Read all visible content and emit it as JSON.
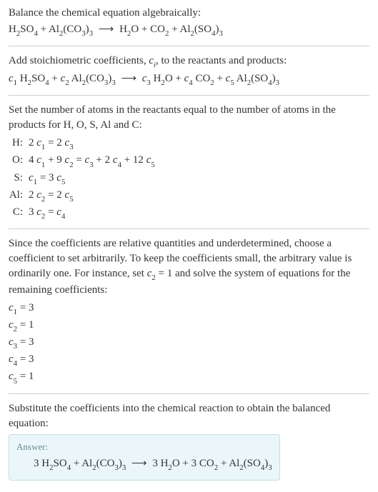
{
  "colors": {
    "text": "#333333",
    "divider": "#d0d0d0",
    "answer_bg": "#eaf6f9",
    "answer_border": "#c5dde4",
    "answer_label": "#6a8a95"
  },
  "typography": {
    "body_fontsize": 15,
    "sub_scale": 0.72,
    "answer_label_fontsize": 13
  },
  "section1": {
    "title": "Balance the chemical equation algebraically:",
    "lhs1": "H",
    "lhs1_sub": "2",
    "lhs2": "SO",
    "lhs2_sub": "4",
    "plus1": " + Al",
    "plus1_sub": "2",
    "plus2": "(CO",
    "plus2_sub1": "3",
    "plus2_rp": ")",
    "plus2_sub2": "3",
    "arrow": "⟶",
    "rhs1": "H",
    "rhs1_sub": "2",
    "rhs2": "O + CO",
    "rhs2_sub": "2",
    "rhs3": " + Al",
    "rhs3_sub": "2",
    "rhs4": "(SO",
    "rhs4_sub1": "4",
    "rhs4_rp": ")",
    "rhs4_sub2": "3"
  },
  "section2": {
    "title_a": "Add stoichiometric coefficients, ",
    "title_ci": "c",
    "title_ci_sub": "i",
    "title_b": ", to the reactants and products:",
    "c1": "c",
    "c1_sub": "1",
    "sp1": " H",
    "sp1_sub": "2",
    "sp1b": "SO",
    "sp1b_sub": "4",
    "plus1": " + ",
    "c2": "c",
    "c2_sub": "2",
    "sp2": " Al",
    "sp2_sub1": "2",
    "sp2b": "(CO",
    "sp2b_sub1": "3",
    "sp2b_rp": ")",
    "sp2b_sub2": "3",
    "arrow": "⟶",
    "c3": "c",
    "c3_sub": "3",
    "sp3": " H",
    "sp3_sub": "2",
    "sp3b": "O",
    "plus2": " + ",
    "c4": "c",
    "c4_sub": "4",
    "sp4": " CO",
    "sp4_sub": "2",
    "plus3": " + ",
    "c5": "c",
    "c5_sub": "5",
    "sp5": " Al",
    "sp5_sub1": "2",
    "sp5b": "(SO",
    "sp5b_sub1": "4",
    "sp5b_rp": ")",
    "sp5b_sub2": "3"
  },
  "section3": {
    "title": "Set the number of atoms in the reactants equal to the number of atoms in the products for H, O, S, Al and C:",
    "rows": [
      {
        "label": "H:",
        "pre1": "2 ",
        "c1": "c",
        "c1s": "1",
        "mid": " = 2 ",
        "c2": "c",
        "c2s": "3"
      },
      {
        "label": "O:",
        "pre1": "4 ",
        "c1": "c",
        "c1s": "1",
        "plus1": " + 9 ",
        "c2": "c",
        "c2s": "2",
        "eq": " = ",
        "c3": "c",
        "c3s": "3",
        "plus2": " + 2 ",
        "c4": "c",
        "c4s": "4",
        "plus3": " + 12 ",
        "c5": "c",
        "c5s": "5"
      },
      {
        "label": "S:",
        "c1": "c",
        "c1s": "1",
        "mid": " = 3 ",
        "c2": "c",
        "c2s": "5"
      },
      {
        "label": "Al:",
        "pre1": "2 ",
        "c1": "c",
        "c1s": "2",
        "mid": " = 2 ",
        "c2": "c",
        "c2s": "5"
      },
      {
        "label": "C:",
        "pre1": "3 ",
        "c1": "c",
        "c1s": "2",
        "mid": " = ",
        "c2": "c",
        "c2s": "4"
      }
    ]
  },
  "section4": {
    "title_a": "Since the coefficients are relative quantities and underdetermined, choose a coefficient to set arbitrarily. To keep the coefficients small, the arbitrary value is ordinarily one. For instance, set ",
    "cvar": "c",
    "cvar_sub": "2",
    "title_b": " = 1 and solve the system of equations for the remaining coefficients:",
    "coefs": [
      {
        "c": "c",
        "cs": "1",
        "val": " = 3"
      },
      {
        "c": "c",
        "cs": "2",
        "val": " = 1"
      },
      {
        "c": "c",
        "cs": "3",
        "val": " = 3"
      },
      {
        "c": "c",
        "cs": "4",
        "val": " = 3"
      },
      {
        "c": "c",
        "cs": "5",
        "val": " = 1"
      }
    ]
  },
  "section5": {
    "title": "Substitute the coefficients into the chemical reaction to obtain the balanced equation:",
    "answer_label": "Answer:",
    "a1": "3 H",
    "a1_sub": "2",
    "a2": "SO",
    "a2_sub": "4",
    "plus1": " + Al",
    "plus1_sub": "2",
    "a3": "(CO",
    "a3_sub1": "3",
    "a3_rp": ")",
    "a3_sub2": "3",
    "arrow": "⟶",
    "a4": "3 H",
    "a4_sub": "2",
    "a5": "O + 3 CO",
    "a5_sub": "2",
    "a6": " + Al",
    "a6_sub": "2",
    "a7": "(SO",
    "a7_sub1": "4",
    "a7_rp": ")",
    "a7_sub2": "3"
  }
}
